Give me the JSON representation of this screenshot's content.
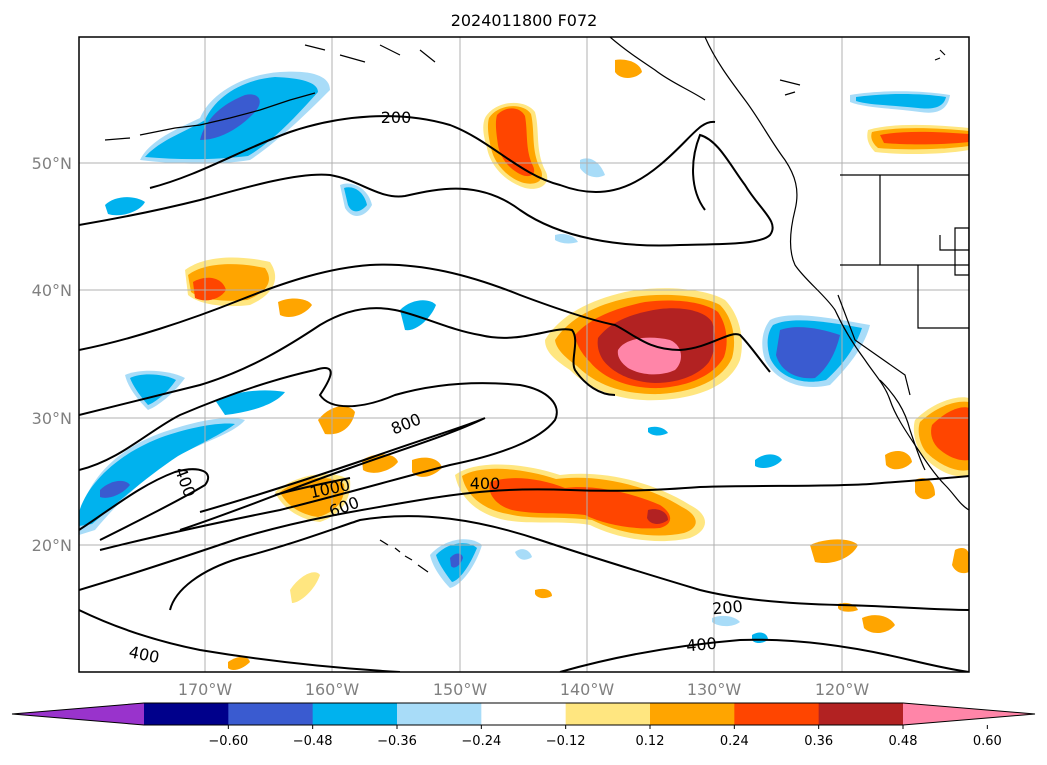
{
  "title": "2024011800 F072",
  "latitude_labels": [
    "50°N",
    "40°N",
    "30°N",
    "20°N"
  ],
  "longitude_labels": [
    "170°W",
    "160°W",
    "150°W",
    "140°W",
    "130°W",
    "120°W"
  ],
  "contour_labels": [
    "200",
    "200",
    "400",
    "400",
    "400",
    "400",
    "600",
    "800",
    "1000"
  ],
  "colorbar": {
    "tick_labels": [
      "−0.60",
      "−0.48",
      "−0.36",
      "−0.24",
      "−0.12",
      "0.12",
      "0.24",
      "0.36",
      "0.48",
      "0.60"
    ],
    "colors": [
      "#9933cc",
      "#00008b",
      "#3a5bd0",
      "#00b2ee",
      "#a8dcf8",
      "#ffffff",
      "#ffe680",
      "#ffa500",
      "#ff4500",
      "#b22222",
      "#ff85a8"
    ],
    "extend": "both"
  },
  "map": {
    "projection": "mercator",
    "lon_range": [
      -180,
      -110
    ],
    "lat_range": [
      10,
      60
    ],
    "gridlines": true,
    "coastlines": true,
    "state_borders": true,
    "contour_color": "#000000",
    "positive_colors": [
      "#ffe680",
      "#ffa500",
      "#ff4500",
      "#b22222",
      "#ff85a8"
    ],
    "negative_colors": [
      "#a8dcf8",
      "#00b2ee",
      "#3a5bd0",
      "#00008b"
    ]
  }
}
